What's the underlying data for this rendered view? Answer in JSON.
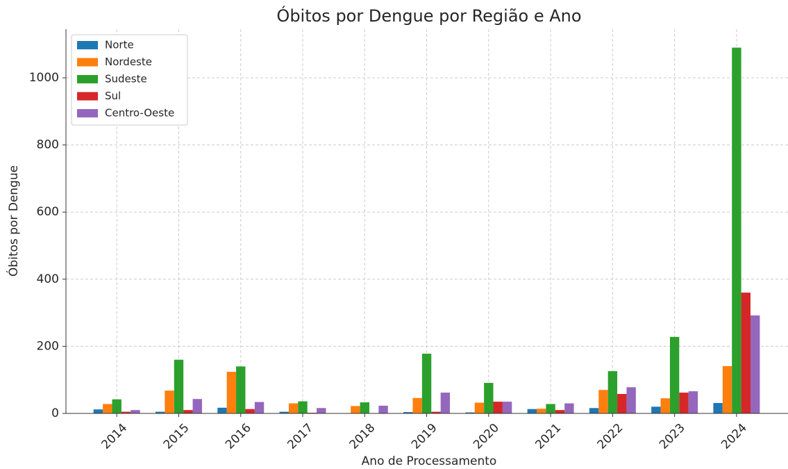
{
  "chart_data": {
    "type": "bar",
    "title": "Óbitos por Dengue por Região e Ano",
    "xlabel": "Ano de Processamento",
    "ylabel": "Óbitos por Dengue",
    "categories": [
      "2014",
      "2015",
      "2016",
      "2017",
      "2018",
      "2019",
      "2020",
      "2021",
      "2022",
      "2023",
      "2024"
    ],
    "series": [
      {
        "name": "Norte",
        "color": "#1f77b4",
        "values": [
          12,
          5,
          17,
          5,
          1,
          4,
          3,
          13,
          16,
          20,
          31
        ]
      },
      {
        "name": "Nordeste",
        "color": "#ff7f0e",
        "values": [
          28,
          68,
          124,
          30,
          22,
          46,
          32,
          14,
          70,
          45,
          141
        ]
      },
      {
        "name": "Sudeste",
        "color": "#2ca02c",
        "values": [
          42,
          160,
          140,
          36,
          33,
          178,
          91,
          28,
          126,
          228,
          1090
        ]
      },
      {
        "name": "Sul",
        "color": "#d62728",
        "values": [
          5,
          10,
          13,
          2,
          1,
          5,
          35,
          10,
          58,
          62,
          360
        ]
      },
      {
        "name": "Centro-Oeste",
        "color": "#9467bd",
        "values": [
          10,
          43,
          34,
          16,
          23,
          62,
          35,
          30,
          78,
          66,
          292
        ]
      }
    ],
    "ylim": [
      0,
      1145
    ],
    "yticks": [
      0,
      200,
      400,
      600,
      800,
      1000
    ],
    "grid": true,
    "legend": "upper left"
  }
}
